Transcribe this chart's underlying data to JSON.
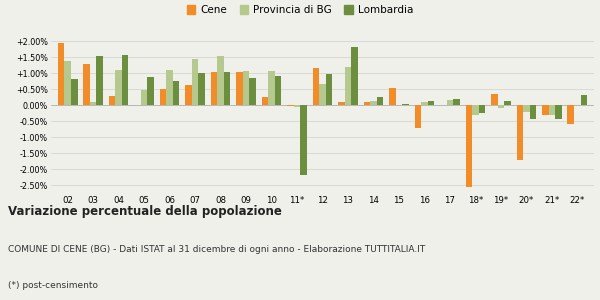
{
  "years": [
    "02",
    "03",
    "04",
    "05",
    "06",
    "07",
    "08",
    "09",
    "10",
    "11*",
    "12",
    "13",
    "14",
    "15",
    "16",
    "17",
    "18*",
    "19*",
    "20*",
    "21*",
    "22*"
  ],
  "cene": [
    1.93,
    1.28,
    0.3,
    null,
    0.52,
    0.62,
    1.05,
    1.05,
    0.25,
    -0.02,
    1.15,
    0.1,
    0.1,
    0.55,
    -0.7,
    null,
    -2.55,
    0.35,
    -1.72,
    -0.3,
    -0.6
  ],
  "provincia_bg": [
    1.38,
    0.1,
    1.1,
    0.47,
    1.1,
    1.43,
    1.52,
    1.08,
    1.07,
    -0.04,
    0.65,
    1.2,
    0.12,
    0.02,
    0.1,
    0.15,
    -0.3,
    -0.08,
    -0.2,
    -0.3,
    0.0
  ],
  "lombardia": [
    0.82,
    1.53,
    1.58,
    0.88,
    0.75,
    1.0,
    1.03,
    0.85,
    0.92,
    -2.18,
    0.98,
    1.82,
    0.27,
    0.03,
    0.12,
    0.18,
    -0.25,
    0.12,
    -0.42,
    -0.42,
    0.32
  ],
  "cene_color": "#f28c28",
  "prov_bg_color": "#b5c98e",
  "lombardia_color": "#6b8f3e",
  "bg_color": "#f0f0eb",
  "yticks": [
    -2.5,
    -2.0,
    -1.5,
    -1.0,
    -0.5,
    0.0,
    0.5,
    1.0,
    1.5,
    2.0
  ],
  "ytick_labels": [
    "-2.50%",
    "-2.00%",
    "-1.50%",
    "-1.00%",
    "-0.50%",
    "0.00%",
    "+0.50%",
    "+1.00%",
    "+1.50%",
    "+2.00%"
  ],
  "ylim": [
    -2.75,
    2.25
  ],
  "title_bold": "Variazione percentuale della popolazione",
  "subtitle": "COMUNE DI CENE (BG) - Dati ISTAT al 31 dicembre di ogni anno - Elaborazione TUTTITALIA.IT",
  "footnote": "(*) post-censimento",
  "legend_labels": [
    "Cene",
    "Provincia di BG",
    "Lombardia"
  ]
}
